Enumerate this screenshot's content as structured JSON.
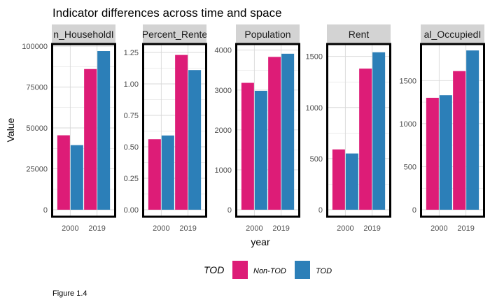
{
  "title": "Indicator differences across time and space",
  "caption": "Figure 1.4",
  "chart_data": {
    "type": "bar",
    "layout": "faceted grouped bars, free y scales",
    "title": "Indicator differences across time and space",
    "xlabel": "year",
    "ylabel": "Value",
    "categories": [
      "2000",
      "2019"
    ],
    "legend": {
      "title": "TOD",
      "position": "bottom",
      "entries": [
        "Non-TOD",
        "TOD"
      ]
    },
    "colors": {
      "Non-TOD": "#dd1c77",
      "TOD": "#2c7fb8",
      "strip": "#d3d3d3",
      "grid": "#d9d9d9"
    },
    "grid": true,
    "facets": [
      {
        "label": "n_HouseholdI",
        "ylim": [
          0,
          100000
        ],
        "yticks": [
          0,
          25000,
          50000,
          75000,
          100000
        ],
        "ytick_labels": [
          "0",
          "25000",
          "50000",
          "75000",
          "100000"
        ],
        "series": [
          {
            "name": "Non-TOD",
            "values": [
              45500,
              86000
            ]
          },
          {
            "name": "TOD",
            "values": [
              39500,
              97000
            ]
          }
        ]
      },
      {
        "label": "Percent_Rente",
        "ylim": [
          0,
          1.3
        ],
        "yticks": [
          0,
          0.25,
          0.5,
          0.75,
          1.0,
          1.25
        ],
        "ytick_labels": [
          "0.00",
          "0.25",
          "0.50",
          "0.75",
          "1.00",
          "1.25"
        ],
        "series": [
          {
            "name": "Non-TOD",
            "values": [
              0.56,
              1.23
            ]
          },
          {
            "name": "TOD",
            "values": [
              0.59,
              1.11
            ]
          }
        ]
      },
      {
        "label": "Population",
        "ylim": [
          0,
          4100
        ],
        "yticks": [
          0,
          1000,
          2000,
          3000,
          4000
        ],
        "ytick_labels": [
          "0",
          "1000",
          "2000",
          "3000",
          "4000"
        ],
        "series": [
          {
            "name": "Non-TOD",
            "values": [
              3180,
              3830
            ]
          },
          {
            "name": "TOD",
            "values": [
              2980,
              3910
            ]
          }
        ]
      },
      {
        "label": "Rent",
        "ylim": [
          0,
          1600
        ],
        "yticks": [
          0,
          500,
          1000,
          1500
        ],
        "ytick_labels": [
          "0",
          "500",
          "1000",
          "1500"
        ],
        "series": [
          {
            "name": "Non-TOD",
            "values": [
              590,
              1380
            ]
          },
          {
            "name": "TOD",
            "values": [
              550,
              1540
            ]
          }
        ]
      },
      {
        "label": "al_OccupiedI",
        "ylim": [
          0,
          1900
        ],
        "yticks": [
          0,
          500,
          1000,
          1500
        ],
        "ytick_labels": [
          "0",
          "500",
          "1000",
          "1500"
        ],
        "series": [
          {
            "name": "Non-TOD",
            "values": [
              1300,
              1610
            ]
          },
          {
            "name": "TOD",
            "values": [
              1330,
              1850
            ]
          }
        ]
      }
    ]
  }
}
